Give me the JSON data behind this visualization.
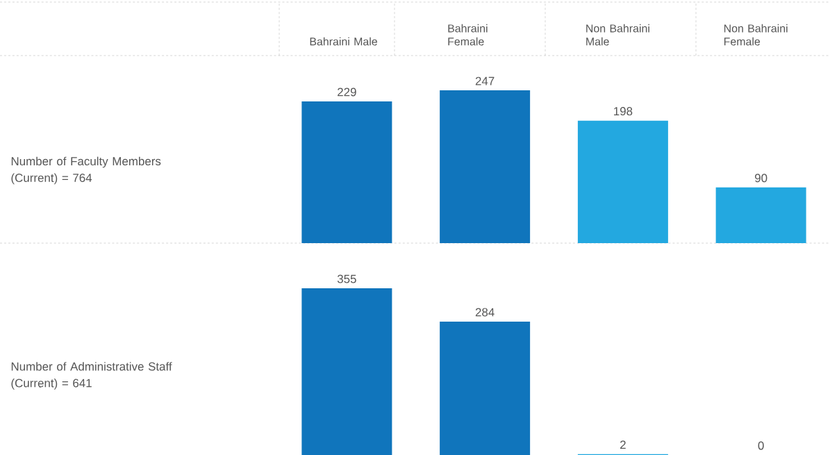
{
  "chart_data": [
    {
      "type": "bar",
      "ylabel": "Number of Faculty Members (Current) = 764",
      "categories": [
        "Bahraini Male",
        "Bahraini Female",
        "Non Bahraini Male",
        "Non Bahraini Female"
      ],
      "values": [
        229,
        247,
        198,
        90
      ],
      "colors": [
        "#1075bc",
        "#1075bc",
        "#23a8e0",
        "#23a8e0"
      ],
      "data_labels": true,
      "tick_labels": "x"
    },
    {
      "type": "bar",
      "ylabel": "Number of Administrative Staff (Current) = 641",
      "categories": [
        null,
        null,
        null,
        null
      ],
      "values": [
        355,
        284,
        2,
        0
      ],
      "colors": [
        "#1075bc",
        "#1075bc",
        "#23a8e0",
        "#23a8e0"
      ],
      "data_labels": true,
      "tick_labels": false
    }
  ]
}
